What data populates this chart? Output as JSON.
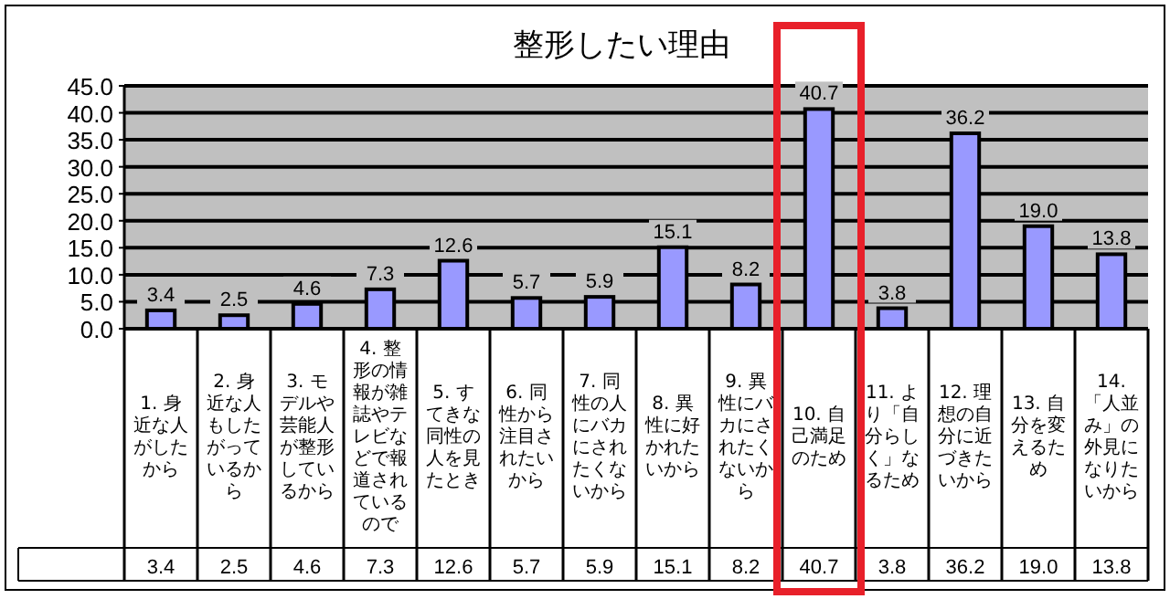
{
  "chart_data": {
    "type": "bar",
    "title": "整形したい理由",
    "categories": [
      "1. 身近な人がしたから",
      "2. 身近な人もしたがっているから",
      "3. モデルや芸能人が整形しているから",
      "4. 整形の情報が雑誌やテレビなどで報道されているので",
      "5. すてきな同性の人を見たとき",
      "6. 同性から注目されたいから",
      "7. 同性の人にバカにされたくないから",
      "8. 異性に好かれたいから",
      "9. 異性にバカにされたくないから",
      "10. 自己満足のため",
      "11. より「自分らしく」なるため",
      "12. 理想の自分に近づきたいから",
      "13. 自分を変えるため",
      "14. 「人並み」の外見になりたいから"
    ],
    "values": [
      3.4,
      2.5,
      4.6,
      7.3,
      12.6,
      5.7,
      5.9,
      15.1,
      8.2,
      40.7,
      3.8,
      36.2,
      19.0,
      13.8
    ],
    "value_labels": [
      "3.4",
      "2.5",
      "4.6",
      "7.3",
      "12.6",
      "5.7",
      "5.9",
      "15.1",
      "8.2",
      "40.7",
      "3.8",
      "36.2",
      "19.0",
      "13.8"
    ],
    "color": "#9999ff",
    "ylim": [
      0,
      45
    ],
    "yticks": [
      {
        "value": 0,
        "label": "0.0"
      },
      {
        "value": 5,
        "label": "5.0"
      },
      {
        "value": 10,
        "label": "10.0"
      },
      {
        "value": 15,
        "label": "15.0"
      },
      {
        "value": 20,
        "label": "20.0"
      },
      {
        "value": 25,
        "label": "25.0"
      },
      {
        "value": 30,
        "label": "30.0"
      },
      {
        "value": 35,
        "label": "35.0"
      },
      {
        "value": 40,
        "label": "40.0"
      },
      {
        "value": 45,
        "label": "45.0"
      }
    ],
    "grid": "y"
  }
}
